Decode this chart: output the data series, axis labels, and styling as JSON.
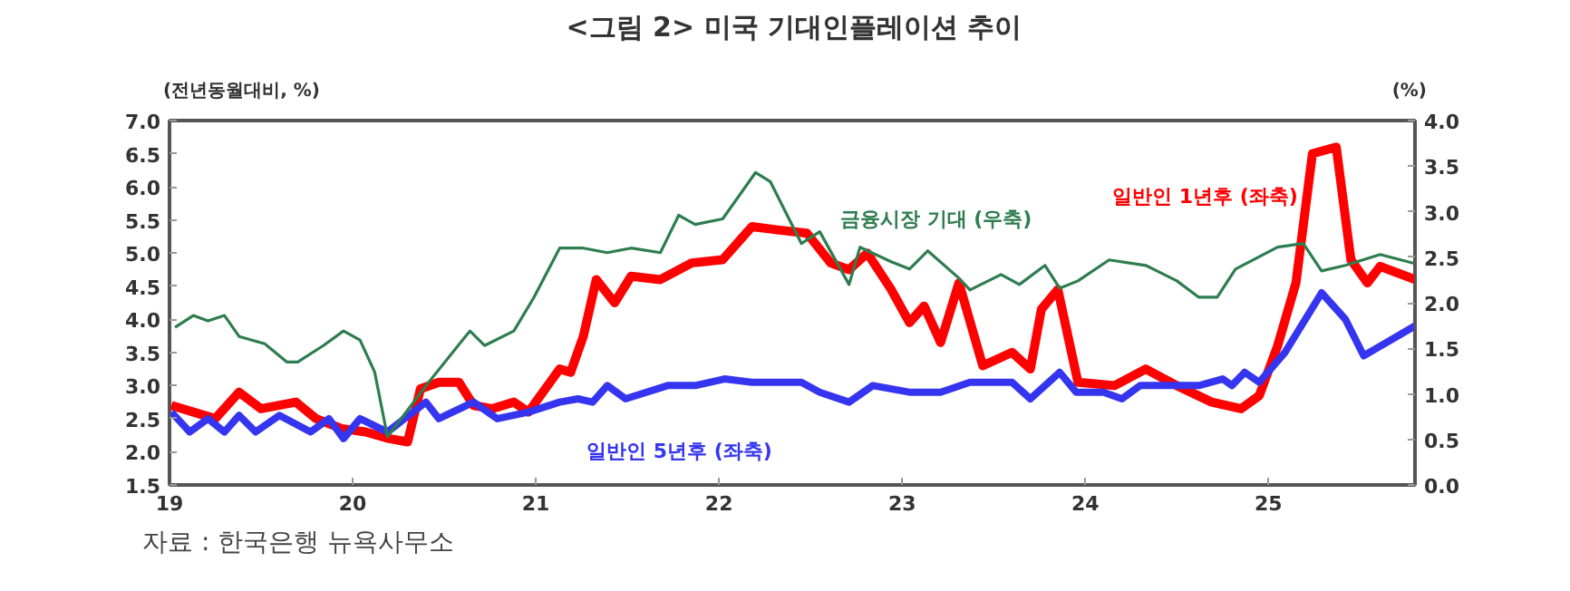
{
  "chart_data": {
    "type": "line",
    "title": "<그림 2> 미국 기대인플레이션 추이",
    "ylabel": "(전년동월대비, %)",
    "y2label": "(%)",
    "xlim": [
      2019,
      2025.8
    ],
    "xticks": [
      {
        "value": 2019,
        "label": "19"
      },
      {
        "value": 2020,
        "label": "20"
      },
      {
        "value": 2021,
        "label": "21"
      },
      {
        "value": 2022,
        "label": "22"
      },
      {
        "value": 2023,
        "label": "23"
      },
      {
        "value": 2024,
        "label": "24"
      },
      {
        "value": 2025,
        "label": "25"
      }
    ],
    "ylim": [
      1.5,
      7.0
    ],
    "yticks": [
      1.5,
      {
        "value": 2,
        "label": "2.0"
      },
      2.5,
      {
        "value": 3,
        "label": "3.0"
      },
      3.5,
      {
        "value": 4,
        "label": "4.0"
      },
      4.5,
      {
        "value": 5,
        "label": "5.0"
      },
      5.5,
      {
        "value": 6,
        "label": "6.0"
      },
      6.5,
      {
        "value": 7,
        "label": "7.0"
      }
    ],
    "y2lim": [
      0,
      4.0
    ],
    "y2ticks": [
      {
        "value": 0,
        "label": "0.0"
      },
      0.5,
      {
        "value": 1,
        "label": "1.0"
      },
      1.5,
      {
        "value": 2,
        "label": "2.0"
      },
      2.5,
      {
        "value": 3,
        "label": "3.0"
      },
      3.5,
      {
        "value": 4,
        "label": "4.0"
      }
    ],
    "grid": false,
    "legend": false,
    "series": [
      {
        "name": "일반인 1년후 (좌축)",
        "color": "#ff0000",
        "x": [
          2019.01,
          2019.25,
          2019.38,
          2019.5,
          2019.69,
          2019.8,
          2019.94,
          2020.07,
          2020.2,
          2020.3,
          2020.37,
          2020.47,
          2020.58,
          2020.66,
          2020.76,
          2020.88,
          2020.96,
          2021.13,
          2021.19,
          2021.26,
          2021.33,
          2021.43,
          2021.52,
          2021.68,
          2021.85,
          2022.02,
          2022.18,
          2022.32,
          2022.48,
          2022.61,
          2022.71,
          2022.81,
          2022.94,
          2023.04,
          2023.12,
          2023.21,
          2023.31,
          2023.44,
          2023.6,
          2023.7,
          2023.76,
          2023.85,
          2023.96,
          2024.16,
          2024.33,
          2024.5,
          2024.69,
          2024.85,
          2024.95,
          2025.05,
          2025.15,
          2025.24,
          2025.37,
          2025.45,
          2025.54,
          2025.61,
          2025.8
        ],
        "values": [
          2.7,
          2.5,
          2.9,
          2.65,
          2.75,
          2.5,
          2.35,
          2.3,
          2.2,
          2.15,
          2.95,
          3.05,
          3.05,
          2.7,
          2.65,
          2.75,
          2.6,
          3.25,
          3.2,
          3.75,
          4.6,
          4.25,
          4.65,
          4.6,
          4.85,
          4.9,
          5.4,
          5.35,
          5.3,
          4.85,
          4.75,
          5.0,
          4.45,
          3.95,
          4.2,
          3.65,
          4.55,
          3.3,
          3.5,
          3.25,
          4.15,
          4.45,
          3.05,
          3.0,
          3.25,
          3.0,
          2.75,
          2.65,
          2.85,
          3.6,
          4.55,
          6.5,
          6.6,
          4.9,
          4.55,
          4.8,
          4.6
        ]
      },
      {
        "name": "일반인 5년후 (좌축)",
        "color": "#3535f0",
        "x": [
          2019.01,
          2019.11,
          2019.21,
          2019.3,
          2019.38,
          2019.47,
          2019.6,
          2019.77,
          2019.87,
          2019.95,
          2020.04,
          2020.19,
          2020.4,
          2020.47,
          2020.66,
          2020.79,
          2020.96,
          2021.13,
          2021.23,
          2021.31,
          2021.39,
          2021.49,
          2021.72,
          2021.87,
          2022.03,
          2022.18,
          2022.45,
          2022.55,
          2022.71,
          2022.84,
          2023.04,
          2023.21,
          2023.37,
          2023.6,
          2023.7,
          2023.86,
          2023.95,
          2024.1,
          2024.2,
          2024.3,
          2024.62,
          2024.75,
          2024.8,
          2024.87,
          2024.95,
          2025.09,
          2025.29,
          2025.42,
          2025.52,
          2025.8
        ],
        "values": [
          2.6,
          2.3,
          2.5,
          2.3,
          2.55,
          2.3,
          2.55,
          2.3,
          2.5,
          2.2,
          2.5,
          2.3,
          2.75,
          2.5,
          2.75,
          2.5,
          2.6,
          2.75,
          2.8,
          2.75,
          3.0,
          2.8,
          3.0,
          3.0,
          3.1,
          3.05,
          3.05,
          2.9,
          2.75,
          3.0,
          2.9,
          2.9,
          3.05,
          3.05,
          2.8,
          3.2,
          2.9,
          2.9,
          2.8,
          3.0,
          3.0,
          3.1,
          3.0,
          3.2,
          3.05,
          3.5,
          4.4,
          4.0,
          3.45,
          3.9
        ]
      },
      {
        "name": "금융시장 기대 (우축)",
        "color": "#2e7d4f",
        "axis": "y2",
        "x": [
          2019.03,
          2019.13,
          2019.21,
          2019.3,
          2019.38,
          2019.52,
          2019.64,
          2019.7,
          2019.84,
          2019.95,
          2020.04,
          2020.12,
          2020.19,
          2020.42,
          2020.64,
          2020.72,
          2020.88,
          2020.99,
          2021.13,
          2021.26,
          2021.39,
          2021.52,
          2021.68,
          2021.78,
          2021.87,
          2022.02,
          2022.2,
          2022.28,
          2022.45,
          2022.55,
          2022.71,
          2022.77,
          2022.94,
          2023.04,
          2023.14,
          2023.31,
          2023.37,
          2023.54,
          2023.64,
          2023.78,
          2023.86,
          2023.96,
          2024.13,
          2024.33,
          2024.5,
          2024.62,
          2024.72,
          2024.82,
          2025.05,
          2025.19,
          2025.29,
          2025.42,
          2025.61,
          2025.8
        ],
        "values": [
          1.73,
          1.86,
          1.8,
          1.86,
          1.63,
          1.55,
          1.35,
          1.35,
          1.53,
          1.69,
          1.59,
          1.24,
          0.53,
          1.14,
          1.69,
          1.53,
          1.69,
          2.06,
          2.6,
          2.6,
          2.55,
          2.6,
          2.55,
          2.96,
          2.86,
          2.92,
          3.43,
          3.33,
          2.65,
          2.78,
          2.2,
          2.61,
          2.45,
          2.37,
          2.57,
          2.27,
          2.14,
          2.31,
          2.2,
          2.41,
          2.16,
          2.24,
          2.47,
          2.41,
          2.24,
          2.06,
          2.06,
          2.37,
          2.61,
          2.65,
          2.35,
          2.41,
          2.53,
          2.43
        ]
      }
    ],
    "annotations": [
      "자료 : 한국은행 뉴욕사무소"
    ]
  }
}
